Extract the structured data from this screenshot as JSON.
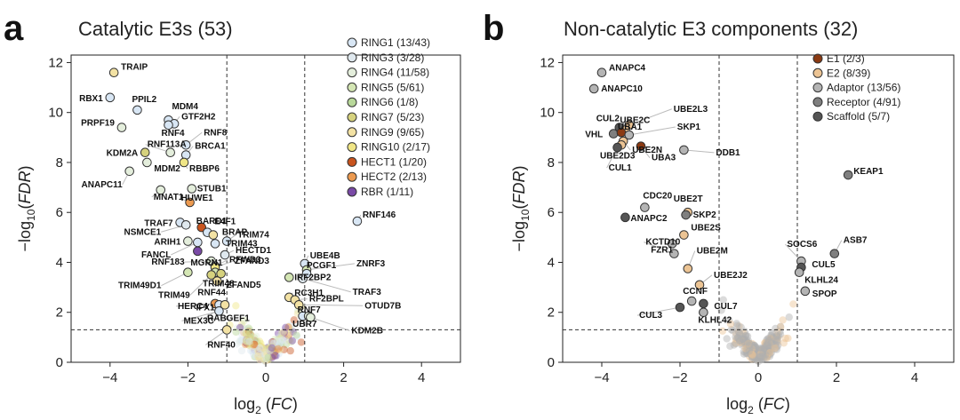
{
  "chart_data": [
    {
      "type": "scatter",
      "panel_letter": "a",
      "title": "Catalytic E3s (53)",
      "xlabel_base": "log",
      "xlabel_sub": "2",
      "xlabel_var": "FC",
      "ylabel_prefix": "−log",
      "ylabel_sub": "10",
      "ylabel_var": "FDR",
      "xlim": [
        -5,
        5
      ],
      "ylim": [
        0,
        12.3
      ],
      "xticks": [
        "−4",
        "−2",
        "0",
        "2",
        "4"
      ],
      "xtick_values": [
        -4,
        -2,
        0,
        2,
        4
      ],
      "yticks": [
        "0",
        "2",
        "4",
        "6",
        "8",
        "10",
        "12"
      ],
      "ytick_values": [
        0,
        2,
        4,
        6,
        8,
        10,
        12
      ],
      "fc_thresholds": [
        -1,
        1
      ],
      "fdr_threshold": 1.3,
      "legend": [
        {
          "label": "RING1 (13/43)",
          "color": "#d8e6f4"
        },
        {
          "label": "RING3 (3/28)",
          "color": "#dfe8ee"
        },
        {
          "label": "RING4 (11/58)",
          "color": "#e4eedc"
        },
        {
          "label": "RING5 (5/61)",
          "color": "#d4e6b4"
        },
        {
          "label": "RING6 (1/8)",
          "color": "#b8d89a"
        },
        {
          "label": "RING7 (5/23)",
          "color": "#d6d27e"
        },
        {
          "label": "RING9 (9/65)",
          "color": "#f3e2a4"
        },
        {
          "label": "RING10 (2/17)",
          "color": "#f0e686"
        },
        {
          "label": "HECT1 (1/20)",
          "color": "#c8541e"
        },
        {
          "label": "HECT2 (2/13)",
          "color": "#ec9a50"
        },
        {
          "label": "RBR (1/11)",
          "color": "#7a4aa6"
        }
      ],
      "points": [
        {
          "label": "TRAIP",
          "x": -3.9,
          "y": 11.6,
          "color": "#f3e2a4"
        },
        {
          "label": "RBX1",
          "x": -4.0,
          "y": 10.6,
          "color": "#d8e6f4"
        },
        {
          "label": "PPIL2",
          "x": -3.3,
          "y": 10.1,
          "color": "#d8e6f4"
        },
        {
          "label": "MDM4",
          "x": -2.5,
          "y": 9.7,
          "color": "#d8e6f4"
        },
        {
          "label": "GTF2H2",
          "x": -2.35,
          "y": 9.55,
          "color": "#d8e6f4"
        },
        {
          "label": "PRPF19",
          "x": -3.7,
          "y": 9.4,
          "color": "#e4eedc"
        },
        {
          "label": "RNF4",
          "x": -2.5,
          "y": 9.5,
          "color": "#d8e6f4"
        },
        {
          "label": "RNF8",
          "x": -2.05,
          "y": 8.7,
          "color": "#d8e6f4"
        },
        {
          "label": "RNF113A",
          "x": -2.45,
          "y": 8.4,
          "color": "#e4eedc"
        },
        {
          "label": "KDM2A",
          "x": -3.1,
          "y": 8.4,
          "color": "#d6d27e"
        },
        {
          "label": "BRCA1",
          "x": -2.05,
          "y": 8.3,
          "color": "#d8e6f4"
        },
        {
          "label": "MDM2",
          "x": -3.05,
          "y": 8.0,
          "color": "#e4eedc"
        },
        {
          "label": "RBBP6",
          "x": -2.1,
          "y": 8.0,
          "color": "#f0e686"
        },
        {
          "label": "ANAPC11",
          "x": -3.5,
          "y": 7.65,
          "color": "#e4eedc"
        },
        {
          "label": "MNAT1",
          "x": -2.7,
          "y": 6.9,
          "color": "#e4eedc"
        },
        {
          "label": "STUB1",
          "x": -1.9,
          "y": 6.95,
          "color": "#e4eedc"
        },
        {
          "label": "HUWE1",
          "x": -1.95,
          "y": 6.4,
          "color": "#ec9a50"
        },
        {
          "label": "TRAF7",
          "x": -2.2,
          "y": 5.6,
          "color": "#d8e6f4"
        },
        {
          "label": "RNF146",
          "x": 2.35,
          "y": 5.65,
          "color": "#d8e6f4"
        },
        {
          "label": "NSMCE1",
          "x": -2.05,
          "y": 5.5,
          "color": "#dfe8ee"
        },
        {
          "label": "BARD1",
          "x": -1.65,
          "y": 5.4,
          "color": "#c8541e"
        },
        {
          "label": "E4F1",
          "x": -1.5,
          "y": 5.2,
          "color": "#d8e6f4"
        },
        {
          "label": "BRAP",
          "x": -1.35,
          "y": 5.1,
          "color": "#f3e2a4"
        },
        {
          "label": "TRIM74",
          "x": -1.0,
          "y": 4.85,
          "color": "#d8e6f4"
        },
        {
          "label": "ARIH1",
          "x": -2.0,
          "y": 4.85,
          "color": "#e4eedc"
        },
        {
          "label": "FANCL",
          "x": -1.75,
          "y": 4.8,
          "color": "#d8e6f4"
        },
        {
          "label": "TRIM43",
          "x": -1.3,
          "y": 4.75,
          "color": "#d8e6f4"
        },
        {
          "label": "MGRN1",
          "x": -1.75,
          "y": 4.45,
          "color": "#7a4aa6"
        },
        {
          "label": "HECTD1",
          "x": -1.05,
          "y": 4.3,
          "color": "#dfe8ee"
        },
        {
          "label": "UBE4B",
          "x": 1.0,
          "y": 3.95,
          "color": "#d8e6f4"
        },
        {
          "label": "RNF183",
          "x": -1.4,
          "y": 4.05,
          "color": "#e4eedc"
        },
        {
          "label": "RFWD3",
          "x": -1.3,
          "y": 3.85,
          "color": "#d8e6f4"
        },
        {
          "label": "ZNRF3",
          "x": 1.05,
          "y": 3.7,
          "color": "#d4e6b4"
        },
        {
          "label": "PCGF1",
          "x": 1.05,
          "y": 3.55,
          "color": "#d8e6f4"
        },
        {
          "label": "ZFAND3",
          "x": -1.3,
          "y": 3.8,
          "color": "#f0e686"
        },
        {
          "label": "TRIM49D1",
          "x": -2.0,
          "y": 3.6,
          "color": "#d4e6b4"
        },
        {
          "label": "TRIM48",
          "x": -1.3,
          "y": 3.6,
          "color": "#d4e6b4"
        },
        {
          "label": "ZFAND5",
          "x": -1.15,
          "y": 3.55,
          "color": "#d6d27e"
        },
        {
          "label": "TRIM49",
          "x": -1.4,
          "y": 3.5,
          "color": "#d6d27e"
        },
        {
          "label": "RNF44",
          "x": -1.25,
          "y": 3.25,
          "color": "#f3e2a4"
        },
        {
          "label": "IRF2BP2",
          "x": 0.6,
          "y": 3.4,
          "color": "#d4e6b4"
        },
        {
          "label": "TRAF3",
          "x": 0.95,
          "y": 3.35,
          "color": "#dfe8ee"
        },
        {
          "label": "RC3H1",
          "x": 0.6,
          "y": 2.6,
          "color": "#f3e2a4"
        },
        {
          "label": "RF2BPL",
          "x": 0.75,
          "y": 2.5,
          "color": "#f3e2a4"
        },
        {
          "label": "HERC4",
          "x": -1.3,
          "y": 2.35,
          "color": "#ec9a50"
        },
        {
          "label": "IFX1",
          "x": -1.2,
          "y": 2.3,
          "color": "#d8e6f4"
        },
        {
          "label": "RABGEF1",
          "x": -1.05,
          "y": 2.3,
          "color": "#f3e2a4"
        },
        {
          "label": "OTUD7B",
          "x": 0.85,
          "y": 2.3,
          "color": "#f3e2a4"
        },
        {
          "label": "MEX3C",
          "x": -1.2,
          "y": 2.05,
          "color": "#d8e6f4"
        },
        {
          "label": "RNF7",
          "x": 0.95,
          "y": 1.85,
          "color": "#d8e6f4"
        },
        {
          "label": "UBR7",
          "x": 1.1,
          "y": 1.85,
          "color": "#e4eedc"
        },
        {
          "label": "KDM2B",
          "x": 1.15,
          "y": 1.8,
          "color": "#e4eedc"
        },
        {
          "label": "RNF40",
          "x": -1.0,
          "y": 1.3,
          "color": "#f3e2a4"
        }
      ]
    },
    {
      "type": "scatter",
      "panel_letter": "b",
      "title": "Non-catalytic E3 components (32)",
      "xlabel_base": "log",
      "xlabel_sub": "2",
      "xlabel_var": "FC",
      "ylabel_prefix": "−log",
      "ylabel_sub": "10",
      "ylabel_var": "FDR",
      "xlim": [
        -5,
        5
      ],
      "ylim": [
        0,
        12.3
      ],
      "xticks": [
        "−4",
        "−2",
        "0",
        "2",
        "4"
      ],
      "xtick_values": [
        -4,
        -2,
        0,
        2,
        4
      ],
      "yticks": [
        "0",
        "2",
        "4",
        "6",
        "8",
        "10",
        "12"
      ],
      "ytick_values": [
        0,
        2,
        4,
        6,
        8,
        10,
        12
      ],
      "fc_thresholds": [
        -1,
        1
      ],
      "fdr_threshold": 1.3,
      "legend": [
        {
          "label": "E1 (2/3)",
          "color": "#8b3a12"
        },
        {
          "label": "E2 (8/39)",
          "color": "#ecc494"
        },
        {
          "label": "Adaptor (13/56)",
          "color": "#b4b4b4"
        },
        {
          "label": "Receptor (4/91)",
          "color": "#7f7f7f"
        },
        {
          "label": "Scaffold (5/7)",
          "color": "#555555"
        }
      ],
      "points": [
        {
          "label": "ANAPC4",
          "x": -4.0,
          "y": 11.6,
          "color": "#b4b4b4"
        },
        {
          "label": "ANAPC10",
          "x": -4.2,
          "y": 10.95,
          "color": "#b4b4b4"
        },
        {
          "label": "UBE2L3",
          "x": -3.3,
          "y": 9.5,
          "color": "#ecc494"
        },
        {
          "label": "CUL2",
          "x": -3.55,
          "y": 9.4,
          "color": "#555555"
        },
        {
          "label": "UBE2C",
          "x": -3.4,
          "y": 9.3,
          "color": "#ecc494"
        },
        {
          "label": "VHL",
          "x": -3.7,
          "y": 9.15,
          "color": "#7f7f7f"
        },
        {
          "label": "UBA1",
          "x": -3.5,
          "y": 9.2,
          "color": "#8b3a12"
        },
        {
          "label": "SKP1",
          "x": -3.3,
          "y": 9.1,
          "color": "#b4b4b4"
        },
        {
          "label": "UBE2N",
          "x": -3.45,
          "y": 8.85,
          "color": "#ecc494"
        },
        {
          "label": "UBE2D3",
          "x": -3.5,
          "y": 8.7,
          "color": "#ecc494"
        },
        {
          "label": "CUL1",
          "x": -3.6,
          "y": 8.6,
          "color": "#555555"
        },
        {
          "label": "UBA3",
          "x": -3.0,
          "y": 8.65,
          "color": "#8b3a12"
        },
        {
          "label": "DDB1",
          "x": -1.9,
          "y": 8.5,
          "color": "#b4b4b4"
        },
        {
          "label": "KEAP1",
          "x": 2.3,
          "y": 7.5,
          "color": "#7f7f7f"
        },
        {
          "label": "CDC20",
          "x": -2.9,
          "y": 6.2,
          "color": "#b4b4b4"
        },
        {
          "label": "UBE2T",
          "x": -1.8,
          "y": 6.0,
          "color": "#ecc494"
        },
        {
          "label": "ANAPC2",
          "x": -3.4,
          "y": 5.8,
          "color": "#555555"
        },
        {
          "label": "SKP2",
          "x": -1.85,
          "y": 5.9,
          "color": "#7f7f7f"
        },
        {
          "label": "UBE2S",
          "x": -1.9,
          "y": 5.1,
          "color": "#ecc494"
        },
        {
          "label": "FZR1",
          "x": -2.2,
          "y": 4.75,
          "color": "#b4b4b4"
        },
        {
          "label": "ASB7",
          "x": 1.95,
          "y": 4.35,
          "color": "#7f7f7f"
        },
        {
          "label": "SOCS6",
          "x": 1.1,
          "y": 4.05,
          "color": "#b4b4b4"
        },
        {
          "label": "KCTD10",
          "x": -2.15,
          "y": 4.35,
          "color": "#b4b4b4"
        },
        {
          "label": "UBE2M",
          "x": -1.8,
          "y": 3.75,
          "color": "#ecc494"
        },
        {
          "label": "CUL5",
          "x": 1.1,
          "y": 3.8,
          "color": "#555555"
        },
        {
          "label": "KLHL24",
          "x": 1.05,
          "y": 3.6,
          "color": "#b4b4b4"
        },
        {
          "label": "UBE2J2",
          "x": -1.5,
          "y": 3.1,
          "color": "#ecc494"
        },
        {
          "label": "SPOP",
          "x": 1.2,
          "y": 2.85,
          "color": "#b4b4b4"
        },
        {
          "label": "CCNF",
          "x": -1.7,
          "y": 2.45,
          "color": "#b4b4b4"
        },
        {
          "label": "CUL7",
          "x": -1.4,
          "y": 2.35,
          "color": "#555555"
        },
        {
          "label": "CUL3",
          "x": -2.0,
          "y": 2.2,
          "color": "#555555"
        },
        {
          "label": "KLHL42",
          "x": -1.4,
          "y": 2.0,
          "color": "#b4b4b4"
        }
      ]
    }
  ]
}
